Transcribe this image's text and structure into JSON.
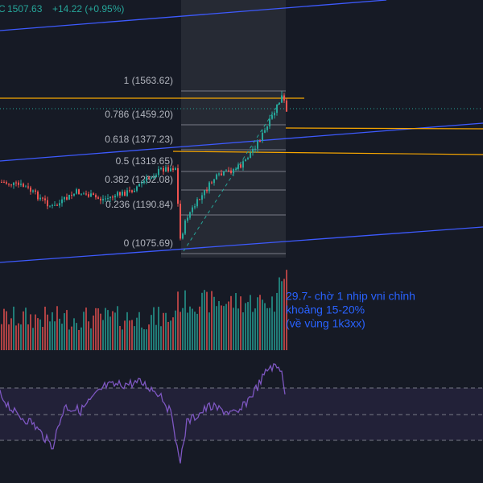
{
  "header": {
    "symbol_tail": "C",
    "price": "1507.63",
    "change": "+14.22 (+0.95%)"
  },
  "fib_levels": [
    "1 (1563.62)",
    "0.786 (1459.20)",
    "0.618 (1377.23)",
    "0.5 (1319.65)",
    "0.382 (1262.08)",
    "0.236 (1190.84)",
    "0 (1075.69)"
  ],
  "annotation": [
    "29.7- chờ 1 nhịp vni chỉnh",
    "khoảng 15-20%",
    "(về vùng 1k3xx)"
  ]
}
